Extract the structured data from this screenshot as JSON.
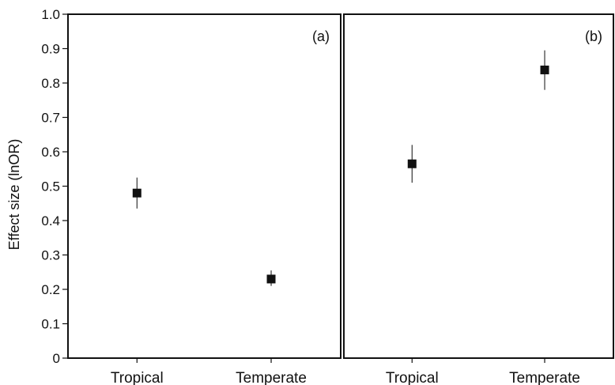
{
  "chart_data": {
    "type": "scatter",
    "ylabel": "Effect size (lnOR)",
    "ylim": [
      0,
      1.0
    ],
    "yticks": [
      "0",
      "0.1",
      "0.2",
      "0.3",
      "0.4",
      "0.5",
      "0.6",
      "0.7",
      "0.8",
      "0.9",
      "1.0"
    ],
    "grid": false,
    "panels": [
      {
        "label": "(a)",
        "categories": [
          "Tropical",
          "Temperate"
        ],
        "values": [
          0.48,
          0.23
        ],
        "error_low": [
          0.435,
          0.21
        ],
        "error_high": [
          0.525,
          0.255
        ]
      },
      {
        "label": "(b)",
        "categories": [
          "Tropical",
          "Temperate"
        ],
        "values": [
          0.565,
          0.838
        ],
        "error_low": [
          0.51,
          0.78
        ],
        "error_high": [
          0.62,
          0.895
        ]
      }
    ]
  }
}
